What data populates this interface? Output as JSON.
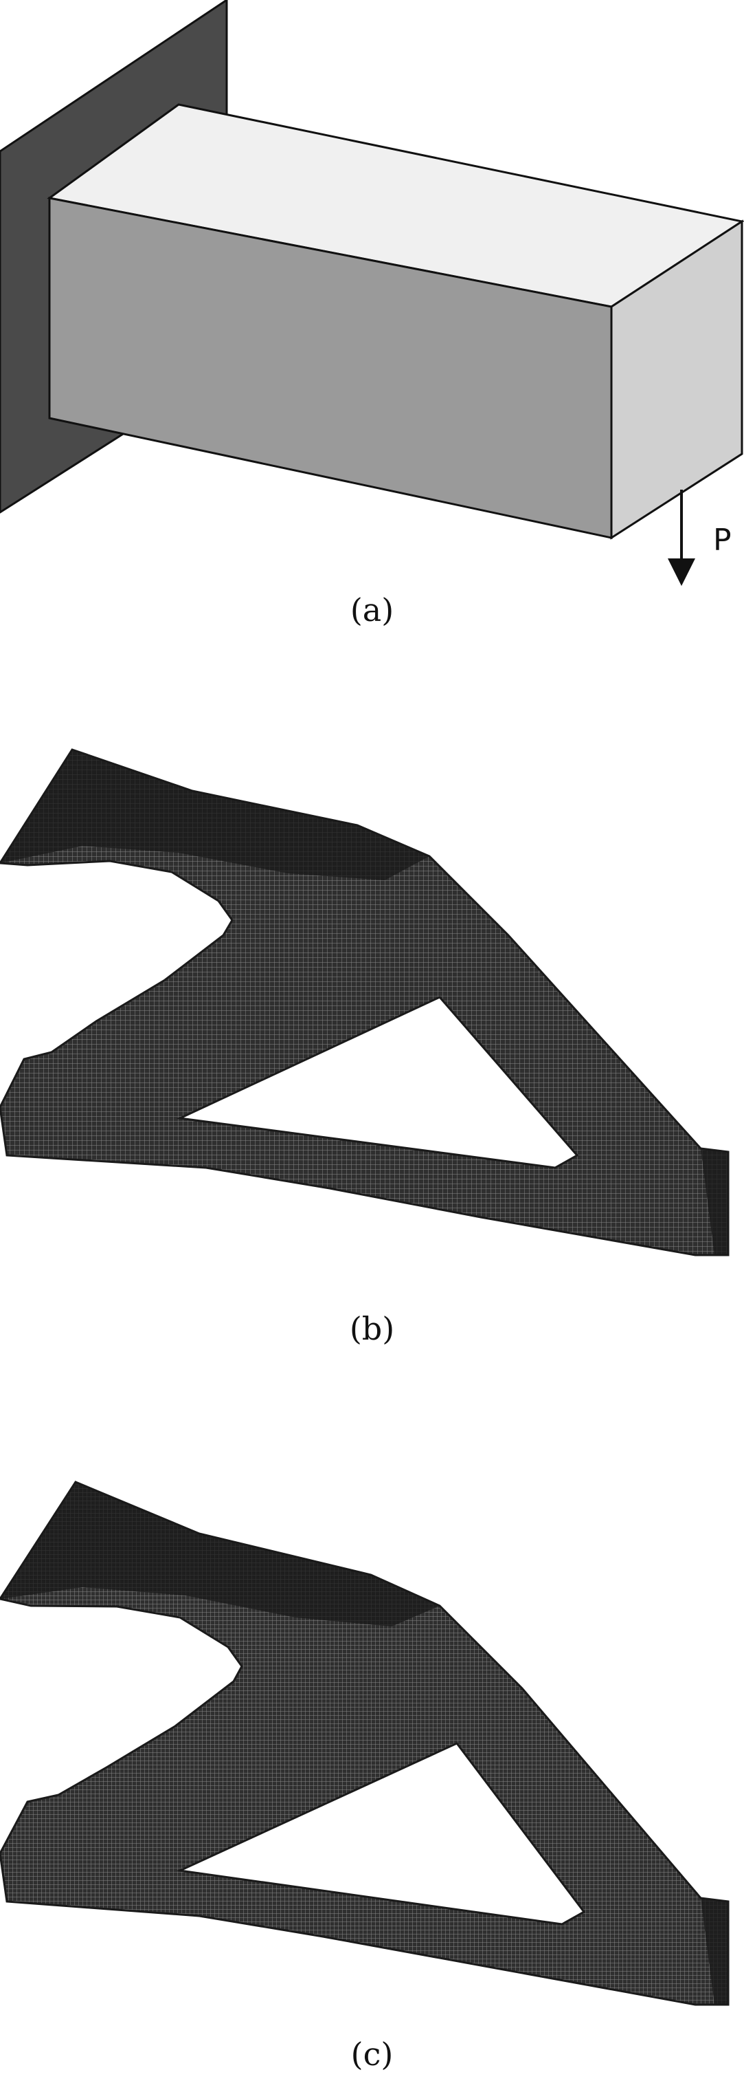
{
  "figure": {
    "panels": [
      {
        "id": "a",
        "caption": "(a)",
        "load_label": "P",
        "colors": {
          "wall": "#4a4a4a",
          "top_face": "#f0f0f0",
          "front_face": "#9a9a9a",
          "end_face": "#d0d0d0",
          "outline": "#111111"
        }
      },
      {
        "id": "b",
        "caption": "(b)",
        "colors": {
          "structure": "#2f2f2f",
          "mesh_lines": "#8a8a8a",
          "shadow": "#1a1a1a"
        }
      },
      {
        "id": "c",
        "caption": "(c)",
        "colors": {
          "structure": "#2f2f2f",
          "mesh_lines": "#8a8a8a",
          "shadow": "#1a1a1a"
        }
      }
    ]
  }
}
